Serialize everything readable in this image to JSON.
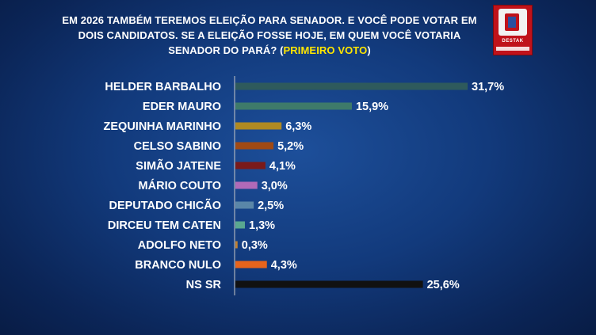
{
  "header": {
    "title_line1": "EM 2026 TAMBÉM TEREMOS ELEIÇÃO PARA SENADOR. E VOCÊ PODE VOTAR EM",
    "title_line2": "DOIS CANDIDATOS. SE A ELEIÇÃO FOSSE HOJE, EM QUEM VOCÊ VOTARIA",
    "title_line3_pre": "SENADOR DO PARÁ? (",
    "title_line3_highlight": "PRIMEIRO VOTO",
    "title_line3_post": ")"
  },
  "logo": {
    "brand": "DESTAK"
  },
  "chart_data": {
    "type": "bar",
    "orientation": "horizontal",
    "categories": [
      "HELDER BARBALHO",
      "EDER MAURO",
      "ZEQUINHA MARINHO",
      "CELSO SABINO",
      "SIMÃO  JATENE",
      "MÁRIO COUTO",
      "DEPUTADO CHICÃO",
      "DIRCEU TEM CATEN",
      "ADOLFO NETO",
      "BRANCO NULO",
      "NS SR"
    ],
    "values": [
      31.7,
      15.9,
      6.3,
      5.2,
      4.1,
      3.0,
      2.5,
      1.3,
      0.3,
      4.3,
      25.6
    ],
    "value_labels": [
      "31,7%",
      "15,9%",
      "6,3%",
      "5,2%",
      "4,1%",
      "3,0%",
      "2,5%",
      "1,3%",
      "0,3%",
      "4,3%",
      "25,6%"
    ],
    "colors": [
      "#2e5a5c",
      "#3e7a6a",
      "#b08a22",
      "#a04a14",
      "#7a1a1a",
      "#b06ab8",
      "#5a86a8",
      "#5aa890",
      "#c08030",
      "#e8641c",
      "#111111"
    ],
    "xlim": [
      0,
      31.7
    ],
    "grid": false,
    "legend": "none"
  }
}
